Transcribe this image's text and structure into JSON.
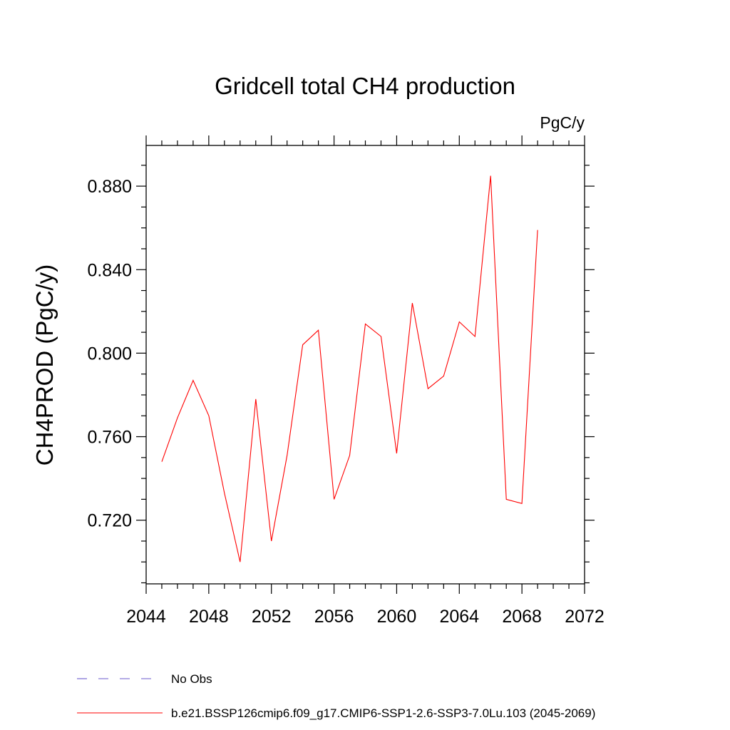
{
  "chart_data": {
    "type": "line",
    "title": "Gridcell total CH4 production",
    "units_label": "PgC/y",
    "xlabel": "",
    "ylabel": "CH4PROD  (PgC/y)",
    "xlim": [
      2044,
      2072
    ],
    "ylim": [
      0.6895,
      0.8995
    ],
    "x_ticks": [
      2044,
      2048,
      2052,
      2056,
      2060,
      2064,
      2068,
      2072
    ],
    "x_minor_step": 1,
    "y_ticks": [
      0.72,
      0.76,
      0.8,
      0.84,
      0.88
    ],
    "y_tick_labels": [
      "0.720",
      "0.760",
      "0.800",
      "0.840",
      "0.880"
    ],
    "y_minor_step": 0.01,
    "grid": false,
    "legend_position": "bottom-left",
    "series": [
      {
        "name": "No Obs",
        "color": "#6a5acd",
        "dash": "dashed",
        "x": [],
        "y": []
      },
      {
        "name": "b.e21.BSSP126cmip6.f09_g17.CMIP6-SSP1-2.6-SSP3-7.0Lu.103 (2045-2069)",
        "color": "#ff0000",
        "dash": "solid",
        "x": [
          2045,
          2046,
          2047,
          2048,
          2049,
          2050,
          2051,
          2052,
          2053,
          2054,
          2055,
          2056,
          2057,
          2058,
          2059,
          2060,
          2061,
          2062,
          2063,
          2064,
          2065,
          2066,
          2067,
          2068,
          2069
        ],
        "y": [
          0.748,
          0.769,
          0.787,
          0.77,
          0.733,
          0.7,
          0.778,
          0.71,
          0.751,
          0.804,
          0.811,
          0.73,
          0.751,
          0.814,
          0.808,
          0.752,
          0.824,
          0.783,
          0.789,
          0.815,
          0.808,
          0.885,
          0.73,
          0.728,
          0.859
        ]
      }
    ]
  }
}
